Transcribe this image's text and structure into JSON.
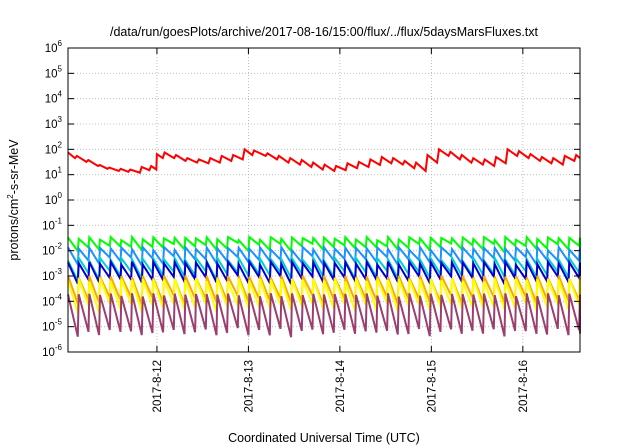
{
  "chart_data": {
    "type": "line",
    "title": "/data/run/goesPlots/archive/2017-08-16/15:00/flux/../flux/5daysMarsFluxes.txt",
    "xlabel": "Coordinated Universal Time (UTC)",
    "ylabel": {
      "base": "protons/cm",
      "sup": "2",
      "rest": "-s-sr-MeV"
    },
    "yscale": "log",
    "ylim": [
      1e-06,
      1000000.0
    ],
    "y_ticks": [
      {
        "base": "10",
        "exp": "-6",
        "value": 1e-06
      },
      {
        "base": "10",
        "exp": "-5",
        "value": 1e-05
      },
      {
        "base": "10",
        "exp": "-4",
        "value": 0.0001
      },
      {
        "base": "10",
        "exp": "-3",
        "value": 0.001
      },
      {
        "base": "10",
        "exp": "-2",
        "value": 0.01
      },
      {
        "base": "10",
        "exp": "-1",
        "value": 0.1
      },
      {
        "base": "10",
        "exp": "0",
        "value": 1
      },
      {
        "base": "10",
        "exp": "1",
        "value": 10
      },
      {
        "base": "10",
        "exp": "2",
        "value": 100
      },
      {
        "base": "10",
        "exp": "3",
        "value": 1000
      },
      {
        "base": "10",
        "exp": "4",
        "value": 10000
      },
      {
        "base": "10",
        "exp": "5",
        "value": 100000
      },
      {
        "base": "10",
        "exp": "6",
        "value": 1000000
      }
    ],
    "xlim": [
      "2017-08-11 00:40",
      "2017-08-16 15:00"
    ],
    "x_ticks": [
      {
        "label": "2017-8-12",
        "value": "2017-08-12"
      },
      {
        "label": "2017-8-13",
        "value": "2017-08-13"
      },
      {
        "label": "2017-8-14",
        "value": "2017-08-14"
      },
      {
        "label": "2017-8-15",
        "value": "2017-08-15"
      },
      {
        "label": "2017-8-16",
        "value": "2017-08-16"
      }
    ],
    "grid": true,
    "sawtooth_pattern": {
      "drop_factor": [
        10,
        0.5,
        1.0,
        0.25,
        0.6,
        0.3,
        1.1,
        0.4,
        0.7,
        0.2,
        0.9,
        0.5,
        0.3,
        1.0,
        0.6,
        0.2,
        0.8,
        0.4,
        0.7,
        0.3,
        1.0,
        0.5,
        0.2,
        0.9,
        0.6,
        0.3,
        0.8,
        0.4,
        0.7,
        0.25,
        1.0,
        0.5,
        0.3,
        0.9,
        0.6,
        0.2,
        0.8,
        0.4,
        0.7,
        0.3,
        1.0,
        0.5,
        0.25,
        0.9,
        0.6,
        0.3,
        0.8,
        0.4,
        0.7
      ]
    },
    "series": [
      {
        "color": "#ff0000",
        "x": [
          "2017-08-11 00:40",
          "2017-08-11 02:30",
          "2017-08-11 03:00",
          "2017-08-11 05:30",
          "2017-08-11 06:00",
          "2017-08-11 08:30",
          "2017-08-11 09:00",
          "2017-08-11 11:00",
          "2017-08-11 11:30",
          "2017-08-11 14:00",
          "2017-08-11 14:30",
          "2017-08-11 16:30",
          "2017-08-11 17:00",
          "2017-08-11 19:30",
          "2017-08-11 20:00",
          "2017-08-11 22:00",
          "2017-08-11 22:30",
          "2017-08-11 23:50",
          "2017-08-12 00:00",
          "2017-08-12 01:30",
          "2017-08-12 02:00",
          "2017-08-12 04:30",
          "2017-08-12 05:00",
          "2017-08-12 07:30",
          "2017-08-12 08:00",
          "2017-08-12 10:30",
          "2017-08-12 11:00",
          "2017-08-12 13:30",
          "2017-08-12 14:00",
          "2017-08-12 16:30",
          "2017-08-12 17:00",
          "2017-08-12 19:30",
          "2017-08-12 20:00",
          "2017-08-12 22:30",
          "2017-08-12 23:00",
          "2017-08-13 01:00",
          "2017-08-13 01:30",
          "2017-08-13 04:30",
          "2017-08-13 05:00",
          "2017-08-13 07:30",
          "2017-08-13 08:00",
          "2017-08-13 10:30",
          "2017-08-13 11:00",
          "2017-08-13 13:30",
          "2017-08-13 14:00",
          "2017-08-13 16:30",
          "2017-08-13 17:00",
          "2017-08-13 19:30",
          "2017-08-13 20:00",
          "2017-08-13 22:30",
          "2017-08-13 23:00",
          "2017-08-14 01:30",
          "2017-08-14 02:00",
          "2017-08-14 04:30",
          "2017-08-14 05:00",
          "2017-08-14 07:30",
          "2017-08-14 08:00",
          "2017-08-14 10:30",
          "2017-08-14 11:00",
          "2017-08-14 13:30",
          "2017-08-14 14:00",
          "2017-08-14 16:30",
          "2017-08-14 17:00",
          "2017-08-14 19:30",
          "2017-08-14 20:00",
          "2017-08-14 22:30",
          "2017-08-14 23:00",
          "2017-08-15 01:30",
          "2017-08-15 02:00",
          "2017-08-15 04:30",
          "2017-08-15 05:00",
          "2017-08-15 07:30",
          "2017-08-15 08:00",
          "2017-08-15 10:30",
          "2017-08-15 11:00",
          "2017-08-15 13:30",
          "2017-08-15 14:00",
          "2017-08-15 16:30",
          "2017-08-15 17:00",
          "2017-08-15 19:30",
          "2017-08-15 20:00",
          "2017-08-15 22:30",
          "2017-08-15 23:00",
          "2017-08-16 01:30",
          "2017-08-16 02:00",
          "2017-08-16 04:30",
          "2017-08-16 05:00",
          "2017-08-16 07:30",
          "2017-08-16 08:00",
          "2017-08-16 10:30",
          "2017-08-16 11:00",
          "2017-08-16 13:30",
          "2017-08-16 14:00",
          "2017-08-16 15:00"
        ],
        "y": [
          75,
          45,
          55,
          32,
          38,
          22,
          24,
          17,
          19,
          14,
          17,
          13,
          16,
          12,
          20,
          15,
          22,
          16,
          65,
          45,
          75,
          45,
          60,
          35,
          45,
          30,
          40,
          28,
          45,
          30,
          55,
          35,
          60,
          40,
          100,
          60,
          90,
          55,
          70,
          40,
          55,
          30,
          45,
          25,
          38,
          20,
          30,
          16,
          25,
          14,
          22,
          15,
          28,
          18,
          32,
          20,
          40,
          24,
          50,
          28,
          45,
          25,
          35,
          18,
          30,
          14,
          60,
          30,
          100,
          55,
          80,
          40,
          60,
          30,
          45,
          25,
          40,
          22,
          50,
          28,
          100,
          55,
          85,
          45,
          65,
          35,
          50,
          28,
          45,
          25,
          55,
          35,
          60,
          45
        ]
      },
      {
        "color": "#00ff00",
        "base": 0.03,
        "amp": 2.2
      },
      {
        "color": "#1e90ff",
        "base": 0.012,
        "amp": 3
      },
      {
        "color": "#00ced1",
        "base": 0.0045,
        "amp": 4
      },
      {
        "color": "#0000cd",
        "base": 0.0032,
        "amp": 4.5
      },
      {
        "color": "#ffa500",
        "base": 0.0009,
        "amp": 8
      },
      {
        "color": "#ffff00",
        "base": 0.0007,
        "amp": 12
      },
      {
        "color": "#9b3f6e",
        "base": 0.00018,
        "amp": 30
      }
    ]
  }
}
